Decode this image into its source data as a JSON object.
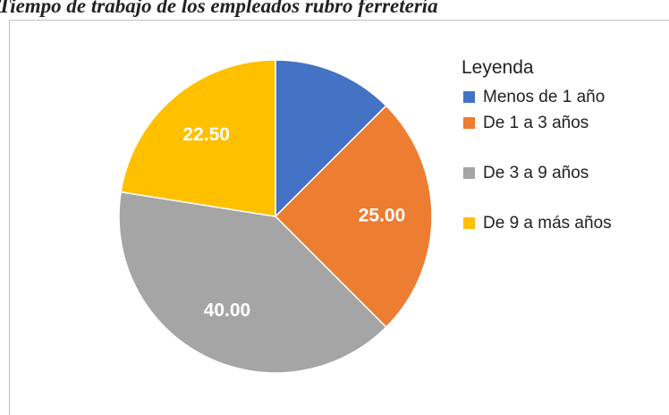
{
  "chart_data": {
    "type": "pie",
    "title": "Tiempo de trabajo de los empleados rubro ferretería",
    "legend_title": "Leyenda",
    "categories": [
      "Menos de 1 año",
      "De 1 a 3 años",
      "De 3 a 9 años",
      "De 9 a más años"
    ],
    "values": [
      12.5,
      25,
      40,
      22.5
    ],
    "value_labels": [
      null,
      "25.00",
      "40.00",
      "22.50"
    ],
    "colors": [
      "#4472c4",
      "#ed7d31",
      "#a5a5a5",
      "#ffc000"
    ],
    "legend": "right"
  }
}
